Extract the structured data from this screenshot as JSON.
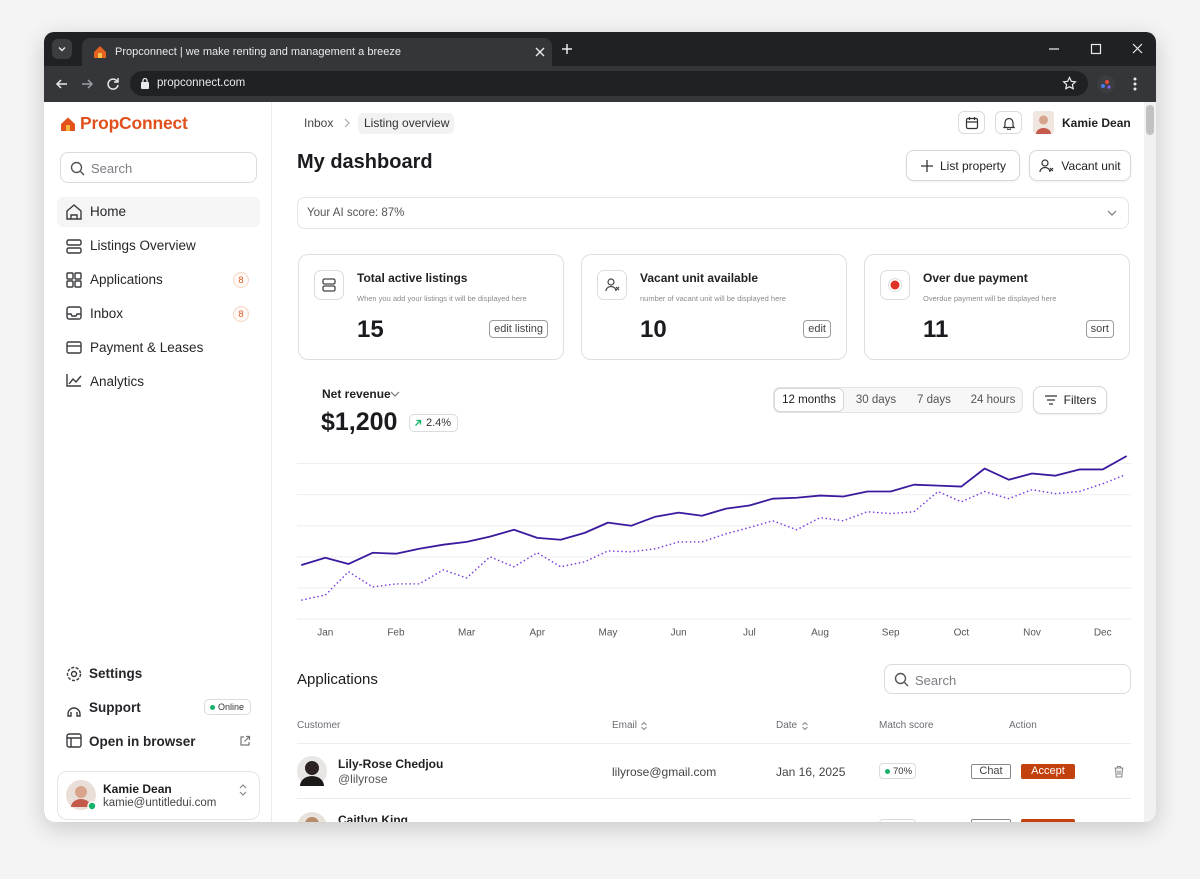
{
  "browser": {
    "tab_title": "Propconnect | we make renting and management a breeze",
    "url": "propconnect.com"
  },
  "sidebar": {
    "logo": "PropConnect",
    "search_placeholder": "Search",
    "nav": [
      {
        "label": "Home"
      },
      {
        "label": "Listings Overview"
      },
      {
        "label": "Applications",
        "badge": 8
      },
      {
        "label": "Inbox",
        "badge": 8
      },
      {
        "label": "Payment & Leases"
      },
      {
        "label": "Analytics"
      }
    ],
    "footer_nav": [
      {
        "label": "Settings"
      },
      {
        "label": "Support",
        "status": "Online"
      },
      {
        "label": "Open in browser"
      }
    ],
    "user": {
      "name": "Kamie Dean",
      "email": "kamie@untitledui.com"
    }
  },
  "header": {
    "breadcrumbs": [
      "Inbox",
      "Listing overview"
    ],
    "user_name": "Kamie Dean",
    "title": "My dashboard",
    "buttons": [
      "List property",
      "Vacant unit"
    ],
    "ai_score": "Your AI score: 87%"
  },
  "stats": [
    {
      "title": "Total active listings",
      "description": "When you add your listings it will be displayed here",
      "value": 15,
      "action": "edit listing"
    },
    {
      "title": "Vacant unit available",
      "description": "number of vacant unit will be displayed here",
      "value": 10,
      "action": "edit"
    },
    {
      "title": "Over due payment",
      "description": "Overdue payment will be displayed here",
      "value": 11,
      "action": "sort"
    }
  ],
  "revenue": {
    "label": "Net revenue",
    "amount": "$1,200",
    "change": "2.4%",
    "ranges": [
      "12 months",
      "30 days",
      "7 days",
      "24 hours"
    ],
    "filters": "Filters"
  },
  "chart_data": {
    "type": "line",
    "x": [
      -0.33,
      0,
      0.33,
      0.67,
      1,
      1.33,
      1.67,
      2,
      2.33,
      2.67,
      3,
      3.33,
      3.67,
      4,
      4.33,
      4.67,
      5,
      5.33,
      5.67,
      6,
      6.33,
      6.67,
      7,
      7.33,
      7.67,
      8,
      8.33,
      8.67,
      9,
      9.33,
      9.67,
      10,
      10.33,
      10.67,
      11,
      11.33
    ],
    "xlim": [
      -0.4,
      11.4
    ],
    "xticks": [
      {
        "value": 0,
        "label": "Jan"
      },
      {
        "value": 1,
        "label": "Feb"
      },
      {
        "value": 2,
        "label": "Mar"
      },
      {
        "value": 3,
        "label": "Apr"
      },
      {
        "value": 4,
        "label": "May"
      },
      {
        "value": 5,
        "label": "Jun"
      },
      {
        "value": 6,
        "label": "Jul"
      },
      {
        "value": 7,
        "label": "Aug"
      },
      {
        "value": 8,
        "label": "Sep"
      },
      {
        "value": 9,
        "label": "Oct"
      },
      {
        "value": 10,
        "label": "Nov"
      },
      {
        "value": 11,
        "label": "Dec"
      }
    ],
    "ylim": [
      0,
      5.5
    ],
    "yticks": [
      0,
      1,
      2,
      3,
      4,
      5
    ],
    "grid": true,
    "series": [
      {
        "color": "#3b1a9e",
        "style": "solid",
        "values": [
          1.74,
          1.97,
          1.77,
          2.13,
          2.1,
          2.26,
          2.39,
          2.48,
          2.65,
          2.87,
          2.61,
          2.55,
          2.77,
          3.1,
          3.0,
          3.29,
          3.42,
          3.32,
          3.55,
          3.65,
          3.87,
          3.9,
          3.97,
          3.94,
          4.1,
          4.1,
          4.32,
          4.29,
          4.26,
          4.84,
          4.48,
          4.68,
          4.61,
          4.81,
          4.81,
          5.23
        ]
      },
      {
        "color": "#7c3fe0",
        "style": "dotted",
        "values": [
          0.61,
          0.77,
          1.52,
          1.03,
          1.13,
          1.13,
          1.58,
          1.32,
          2.0,
          1.68,
          2.13,
          1.68,
          1.84,
          2.19,
          2.16,
          2.26,
          2.48,
          2.48,
          2.74,
          2.94,
          3.16,
          2.87,
          3.26,
          3.16,
          3.45,
          3.39,
          3.45,
          4.1,
          3.77,
          4.1,
          3.87,
          4.16,
          4.03,
          4.1,
          4.35,
          4.65
        ]
      }
    ]
  },
  "applications": {
    "title": "Applications",
    "search_placeholder": "Search",
    "columns": [
      "Customer",
      "Email",
      "Date",
      "Match score",
      "Action"
    ],
    "rows": [
      {
        "name": "Lily-Rose Chedjou",
        "handle": "@lilyrose",
        "email": "lilyrose@gmail.com",
        "date": "Jan 16, 2025",
        "match_score": "70%",
        "actions": [
          "Chat",
          "Accept"
        ]
      },
      {
        "name": "Caitlyn King"
      }
    ]
  }
}
